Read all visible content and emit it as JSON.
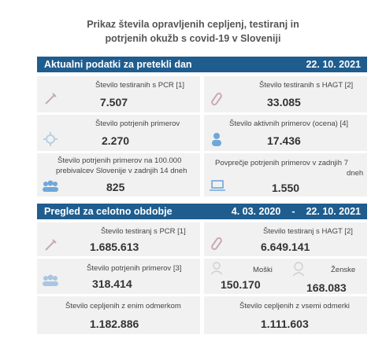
{
  "title": {
    "line1": "Prikaz števila opravljenih cepljenj, testiranj in",
    "line2": "potrjenih okužb s covid-19 v Sloveniji"
  },
  "section1": {
    "heading": "Aktualni podatki za pretekli dan",
    "date": "22. 10. 2021",
    "cards": {
      "pcr": {
        "label": "Število testiranih s PCR [1]",
        "value": "7.507",
        "icon": "syringe-icon"
      },
      "hagt": {
        "label": "Število testiranih s HAGT [2]",
        "value": "33.085",
        "icon": "test-tube-icon"
      },
      "confirmed": {
        "label": "Število potrjenih primerov",
        "value": "2.270",
        "icon": "virus-icon"
      },
      "active": {
        "label": "Število aktivnih primerov (ocena) [4]",
        "value": "17.436",
        "icon": "person-icon"
      },
      "per100k": {
        "line1": "Število potrjenih primerov na 100.000",
        "line2": "prebivalcev Slovenije v zadnjih 14 dneh",
        "value": "825",
        "icon": "group-icon"
      },
      "avg7": {
        "line1": "Povprečje potrjenih primerov v zadnjih 7",
        "line2": "dneh",
        "value": "1.550",
        "icon": "laptop-icon"
      }
    }
  },
  "section2": {
    "heading": "Pregled za celotno obdobje",
    "date_from": "4. 03. 2020",
    "dash": "-",
    "date_to": "22. 10. 2021",
    "cards": {
      "pcr": {
        "label": "Število testiranj s PCR [1]",
        "value": "1.685.613",
        "icon": "syringe-icon"
      },
      "hagt": {
        "label": "Število testiranj s HAGT [2]",
        "value": "6.649.141",
        "icon": "test-tube-icon"
      },
      "confirmed": {
        "label": "Število potrjenih primerov [3]",
        "value": "318.414",
        "icon": "group-icon"
      },
      "male": {
        "label": "Moški",
        "value": "150.170",
        "icon": "male-icon"
      },
      "female": {
        "label": "Ženske",
        "value": "168.083",
        "icon": "female-icon"
      },
      "vacc1": {
        "label": "Število cepljenih z enim odmerkom",
        "value": "1.182.886"
      },
      "vaccall": {
        "label": "Število cepljenih z vsemi odmerki",
        "value": "1.111.603"
      }
    }
  },
  "colors": {
    "header": "#1f5d8f",
    "card": "#f1f1f1",
    "icon": "#c9a8b4",
    "icon_blue": "#6fa7d9"
  }
}
